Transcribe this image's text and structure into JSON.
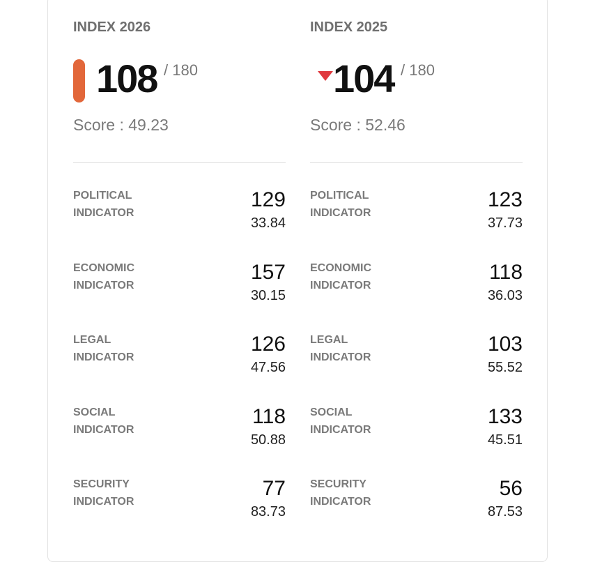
{
  "columns": [
    {
      "title": "INDEX 2026",
      "rank": 108,
      "total": "/ 180",
      "score": "Score : 49.23",
      "indicators": [
        {
          "label": "POLITICAL INDICATOR",
          "rank": 129,
          "score": "33.84"
        },
        {
          "label": "ECONOMIC INDICATOR",
          "rank": 157,
          "score": "30.15"
        },
        {
          "label": "LEGAL INDICATOR",
          "rank": 126,
          "score": "47.56"
        },
        {
          "label": "SOCIAL INDICATOR",
          "rank": 118,
          "score": "50.88"
        },
        {
          "label": "SECURITY INDICATOR",
          "rank": 77,
          "score": "83.73"
        }
      ]
    },
    {
      "title": "INDEX 2025",
      "rank": 104,
      "total": "/ 180",
      "score": "Score : 52.46",
      "indicators": [
        {
          "label": "POLITICAL INDICATOR",
          "rank": 123,
          "score": "37.73"
        },
        {
          "label": "ECONOMIC INDICATOR",
          "rank": 118,
          "score": "36.03"
        },
        {
          "label": "LEGAL INDICATOR",
          "rank": 103,
          "score": "55.52"
        },
        {
          "label": "SOCIAL INDICATOR",
          "rank": 133,
          "score": "45.51"
        },
        {
          "label": "SECURITY INDICATOR",
          "rank": 56,
          "score": "87.53"
        }
      ]
    }
  ]
}
